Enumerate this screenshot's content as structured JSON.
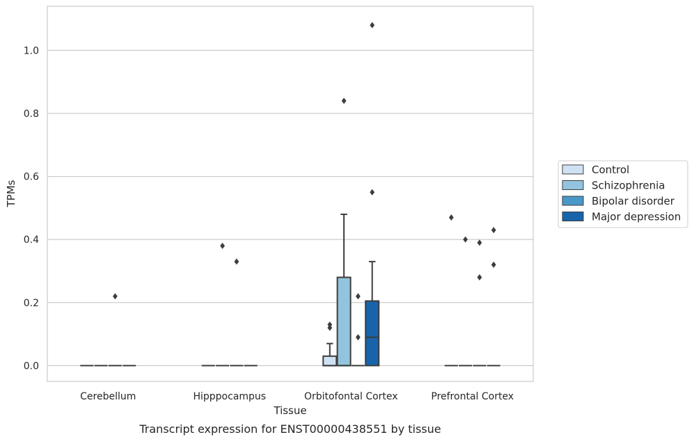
{
  "chart_data": {
    "type": "boxplot",
    "xlabel": "Tissue",
    "ylabel": "TPMs",
    "caption": "Transcript expression for ENST00000438551 by tissue",
    "ylim": [
      -0.05,
      1.14
    ],
    "yticks": [
      0.0,
      0.2,
      0.4,
      0.6,
      0.8,
      1.0
    ],
    "ytick_labels": [
      "0.0",
      "0.2",
      "0.4",
      "0.6",
      "0.8",
      "1.0"
    ],
    "grid": "horizontal",
    "legend_position": "right",
    "categories": [
      "Cerebellum",
      "Hipppocampus",
      "Orbitofontal Cortex",
      "Prefrontal Cortex"
    ],
    "series": [
      {
        "name": "Control",
        "color": "#cfe1f2",
        "boxes": [
          {
            "q1": 0,
            "median": 0,
            "q3": 0,
            "whislo": 0,
            "whishi": 0,
            "fliers": []
          },
          {
            "q1": 0,
            "median": 0,
            "q3": 0,
            "whislo": 0,
            "whishi": 0,
            "fliers": []
          },
          {
            "q1": 0,
            "median": 0,
            "q3": 0.03,
            "whislo": 0,
            "whishi": 0.07,
            "fliers": [
              0.12,
              0.13
            ]
          },
          {
            "q1": 0,
            "median": 0,
            "q3": 0,
            "whislo": 0,
            "whishi": 0,
            "fliers": [
              0.47
            ]
          }
        ]
      },
      {
        "name": "Schizophrenia",
        "color": "#93c4de",
        "boxes": [
          {
            "q1": 0,
            "median": 0,
            "q3": 0,
            "whislo": 0,
            "whishi": 0,
            "fliers": []
          },
          {
            "q1": 0,
            "median": 0,
            "q3": 0,
            "whislo": 0,
            "whishi": 0,
            "fliers": [
              0.38
            ]
          },
          {
            "q1": 0,
            "median": 0,
            "q3": 0.28,
            "whislo": 0,
            "whishi": 0.48,
            "fliers": [
              0.84
            ]
          },
          {
            "q1": 0,
            "median": 0,
            "q3": 0,
            "whislo": 0,
            "whishi": 0,
            "fliers": [
              0.4
            ]
          }
        ]
      },
      {
        "name": "Bipolar disorder",
        "color": "#4a98c9",
        "boxes": [
          {
            "q1": 0,
            "median": 0,
            "q3": 0,
            "whislo": 0,
            "whishi": 0,
            "fliers": [
              0.22
            ]
          },
          {
            "q1": 0,
            "median": 0,
            "q3": 0,
            "whislo": 0,
            "whishi": 0,
            "fliers": [
              0.33
            ]
          },
          {
            "q1": 0,
            "median": 0,
            "q3": 0,
            "whislo": 0,
            "whishi": 0,
            "fliers": [
              0.22,
              0.09
            ]
          },
          {
            "q1": 0,
            "median": 0,
            "q3": 0,
            "whislo": 0,
            "whishi": 0,
            "fliers": [
              0.39,
              0.28
            ]
          }
        ]
      },
      {
        "name": "Major depression",
        "color": "#1764ab",
        "boxes": [
          {
            "q1": 0,
            "median": 0,
            "q3": 0,
            "whislo": 0,
            "whishi": 0,
            "fliers": []
          },
          {
            "q1": 0,
            "median": 0,
            "q3": 0,
            "whislo": 0,
            "whishi": 0,
            "fliers": []
          },
          {
            "q1": 0,
            "median": 0.09,
            "q3": 0.205,
            "whislo": 0,
            "whishi": 0.33,
            "fliers": [
              0.55,
              1.08
            ]
          },
          {
            "q1": 0,
            "median": 0,
            "q3": 0,
            "whislo": 0,
            "whishi": 0,
            "fliers": [
              0.43,
              0.32
            ]
          }
        ]
      }
    ]
  }
}
